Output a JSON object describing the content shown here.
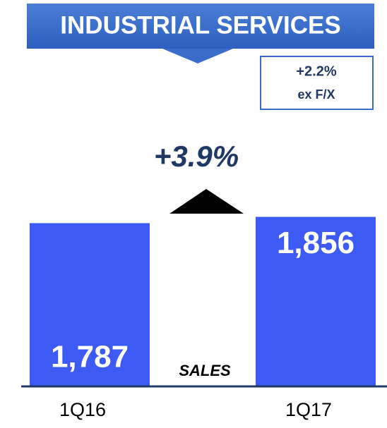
{
  "chart_data": {
    "type": "bar",
    "title": "INDUSTRIAL SERVICES",
    "annotations": [
      "+3.9%",
      "SALES"
    ],
    "callout": {
      "value": "+2.2%",
      "note": "ex F/X"
    },
    "categories": [
      "1Q16",
      "1Q17"
    ],
    "values": [
      1787,
      1856
    ],
    "value_labels": [
      "1,787",
      "1,856"
    ],
    "color": "#3d5af5",
    "ylim": [
      0,
      2000
    ]
  }
}
